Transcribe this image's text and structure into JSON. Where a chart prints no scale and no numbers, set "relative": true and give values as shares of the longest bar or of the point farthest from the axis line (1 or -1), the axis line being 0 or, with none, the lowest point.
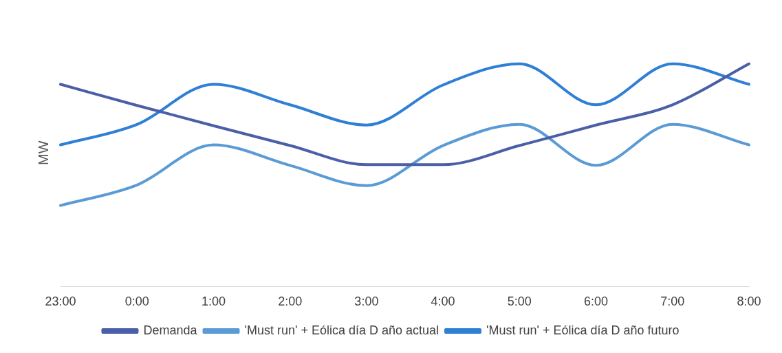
{
  "chart_data": {
    "type": "line",
    "relative": true,
    "ylabel": "MW",
    "grid": false,
    "legend": "bottom",
    "marker": "none",
    "line_style": "solid",
    "categories": [
      "23:00",
      "0:00",
      "1:00",
      "2:00",
      "3:00",
      "4:00",
      "5:00",
      "6:00",
      "7:00",
      "8:00"
    ],
    "series": [
      {
        "name": "Demanda",
        "color": "#4a5fa8",
        "values": [
          0.908,
          0.813,
          0.722,
          0.633,
          0.547,
          0.547,
          0.633,
          0.725,
          0.816,
          1
        ]
      },
      {
        "name": "'Must run' + Eólica día D año actual",
        "color": "#5b9bd5",
        "values": [
          0.364,
          0.456,
          0.636,
          0.544,
          0.453,
          0.633,
          0.728,
          0.544,
          0.728,
          0.636
        ]
      },
      {
        "name": "'Must run' + Eólica día D año futuro",
        "color": "#2e7fd6",
        "values": [
          0.636,
          0.728,
          0.908,
          0.816,
          0.725,
          0.905,
          1,
          0.816,
          1,
          0.908
        ]
      }
    ]
  }
}
